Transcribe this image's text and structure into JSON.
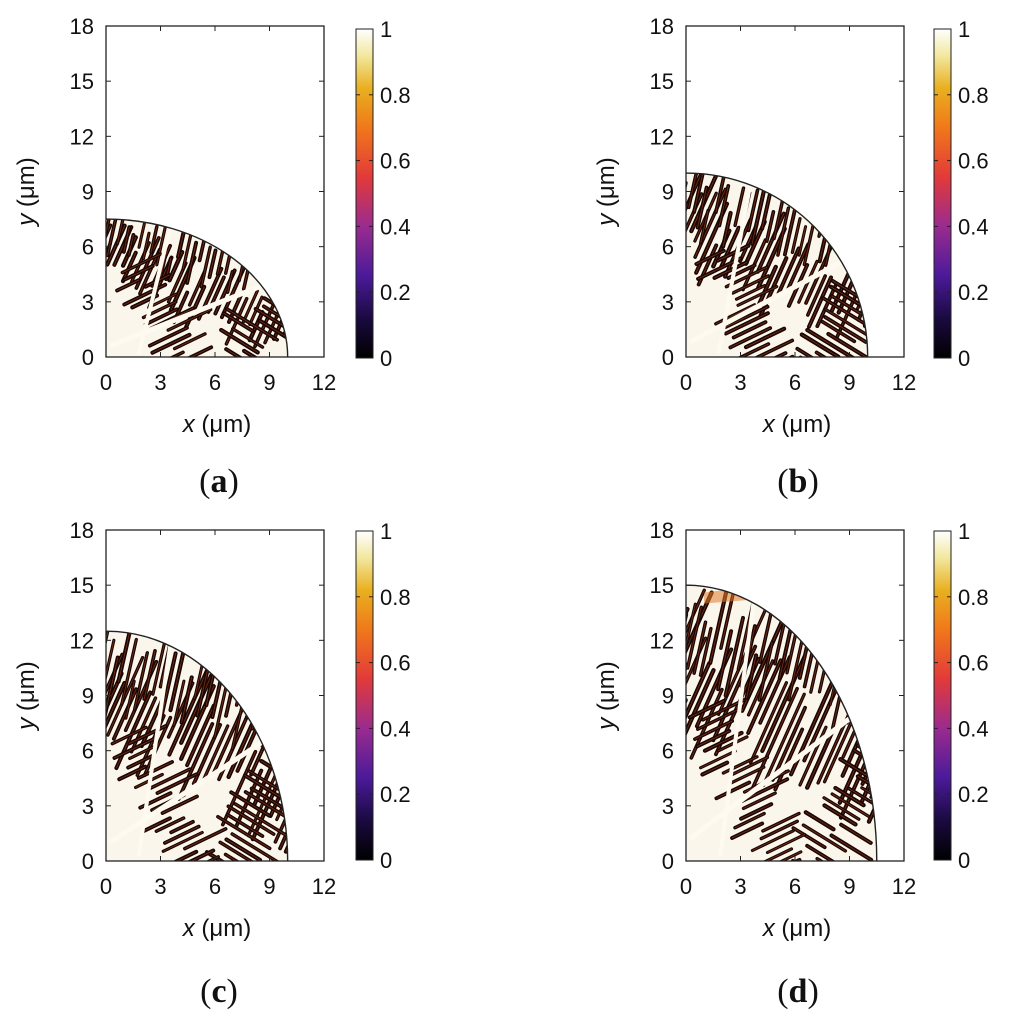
{
  "colorbar": {
    "ticks": [
      "0",
      "0.2",
      "0.4",
      "0.6",
      "0.8",
      "1"
    ],
    "range": [
      0,
      1
    ],
    "stops": [
      {
        "v": 0.0,
        "color": "#000000"
      },
      {
        "v": 0.12,
        "color": "#1a0a40"
      },
      {
        "v": 0.25,
        "color": "#4b1a9a"
      },
      {
        "v": 0.4,
        "color": "#9a2b8f"
      },
      {
        "v": 0.55,
        "color": "#e23a3a"
      },
      {
        "v": 0.7,
        "color": "#f0781a"
      },
      {
        "v": 0.82,
        "color": "#e8b020"
      },
      {
        "v": 0.92,
        "color": "#f2e8a0"
      },
      {
        "v": 1.0,
        "color": "#ffffff"
      }
    ]
  },
  "chart_data": [
    {
      "type": "heatmap",
      "panel_label": "a",
      "xlabel_var": "x",
      "xlabel_unit": "(μm)",
      "ylabel_var": "y",
      "ylabel_unit": "(μm)",
      "xlim": [
        0,
        12
      ],
      "ylim": [
        0,
        18
      ],
      "xticks": [
        "0",
        "3",
        "6",
        "9",
        "12"
      ],
      "yticks": [
        "0",
        "3",
        "6",
        "9",
        "12",
        "15",
        "18"
      ],
      "domain": {
        "shape": "quarter-ellipse",
        "x_radius": 10,
        "y_radius": 7.5
      },
      "value_range": [
        0,
        1
      ]
    },
    {
      "type": "heatmap",
      "panel_label": "b",
      "xlabel_var": "x",
      "xlabel_unit": "(μm)",
      "ylabel_var": "y",
      "ylabel_unit": "(μm)",
      "xlim": [
        0,
        12
      ],
      "ylim": [
        0,
        18
      ],
      "xticks": [
        "0",
        "3",
        "6",
        "9",
        "12"
      ],
      "yticks": [
        "0",
        "3",
        "6",
        "9",
        "12",
        "15",
        "18"
      ],
      "domain": {
        "shape": "quarter-ellipse",
        "x_radius": 10,
        "y_radius": 10
      },
      "value_range": [
        0,
        1
      ]
    },
    {
      "type": "heatmap",
      "panel_label": "c",
      "xlabel_var": "x",
      "xlabel_unit": "(μm)",
      "ylabel_var": "y",
      "ylabel_unit": "(μm)",
      "xlim": [
        0,
        12
      ],
      "ylim": [
        0,
        18
      ],
      "xticks": [
        "0",
        "3",
        "6",
        "9",
        "12"
      ],
      "yticks": [
        "0",
        "3",
        "6",
        "9",
        "12",
        "15",
        "18"
      ],
      "domain": {
        "shape": "quarter-ellipse",
        "x_radius": 10,
        "y_radius": 12.5
      },
      "value_range": [
        0,
        1
      ]
    },
    {
      "type": "heatmap",
      "panel_label": "d",
      "xlabel_var": "x",
      "xlabel_unit": "(μm)",
      "ylabel_var": "y",
      "ylabel_unit": "(μm)",
      "xlim": [
        0,
        12
      ],
      "ylim": [
        0,
        18
      ],
      "xticks": [
        "0",
        "3",
        "6",
        "9",
        "12"
      ],
      "yticks": [
        "0",
        "3",
        "6",
        "9",
        "12",
        "15",
        "18"
      ],
      "domain": {
        "shape": "quarter-ellipse",
        "x_radius": 10.5,
        "y_radius": 15
      },
      "value_range": [
        0,
        1
      ]
    }
  ]
}
